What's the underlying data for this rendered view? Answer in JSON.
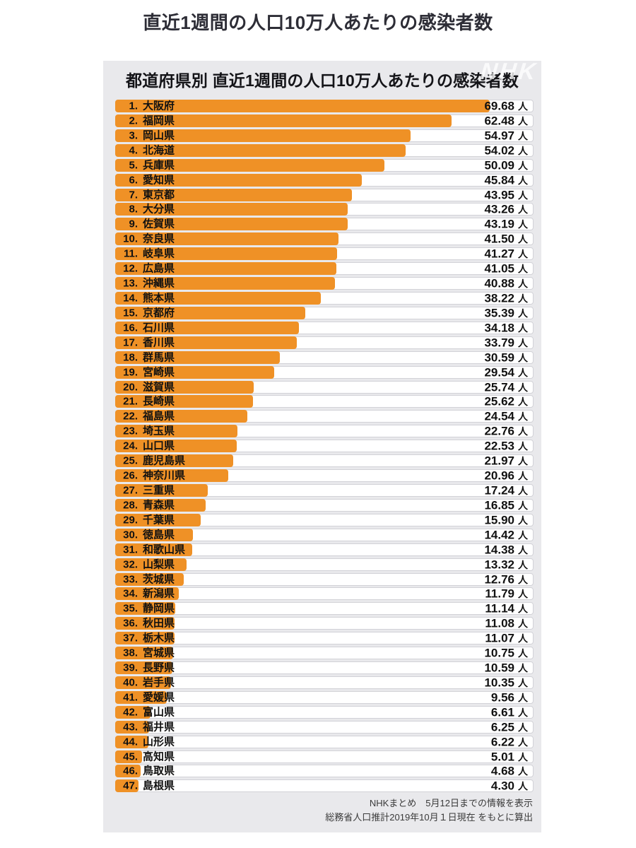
{
  "page_title": "直近1週間の人口10万人あたりの感染者数",
  "watermark": "NHK",
  "card": {
    "header": "都道府県別 直近1週間の人口10万人あたりの感染者数"
  },
  "footer": {
    "line1": "NHKまとめ　5月12日までの情報を表示",
    "line2": "総務省人口推計2019年10月１日現在 をもとに算出"
  },
  "colors": {
    "bar_orange": "#ef9126",
    "card_bg": "#e9e9ec",
    "row_bg": "#ffffff",
    "row_border": "#d2d2d7",
    "title_text": "#2d2d36"
  },
  "chart_data": {
    "type": "bar",
    "orientation": "horizontal",
    "title": "都道府県別 直近1週間の人口10万人あたりの感染者数",
    "subtitle": "直近1週間の人口10万人あたりの感染者数",
    "unit": "人",
    "value_decimals": 2,
    "axis_max": 77.5,
    "legend": "none",
    "grid": false,
    "categories": [
      "大阪府",
      "福岡県",
      "岡山県",
      "北海道",
      "兵庫県",
      "愛知県",
      "東京都",
      "大分県",
      "佐賀県",
      "奈良県",
      "岐阜県",
      "広島県",
      "沖縄県",
      "熊本県",
      "京都府",
      "石川県",
      "香川県",
      "群馬県",
      "宮崎県",
      "滋賀県",
      "長崎県",
      "福島県",
      "埼玉県",
      "山口県",
      "鹿児島県",
      "神奈川県",
      "三重県",
      "青森県",
      "千葉県",
      "徳島県",
      "和歌山県",
      "山梨県",
      "茨城県",
      "新潟県",
      "静岡県",
      "秋田県",
      "栃木県",
      "宮城県",
      "長野県",
      "岩手県",
      "愛媛県",
      "富山県",
      "福井県",
      "山形県",
      "高知県",
      "鳥取県",
      "島根県"
    ],
    "values": [
      69.68,
      62.48,
      54.97,
      54.02,
      50.09,
      45.84,
      43.95,
      43.26,
      43.19,
      41.5,
      41.27,
      41.05,
      40.88,
      38.22,
      35.39,
      34.18,
      33.79,
      30.59,
      29.54,
      25.74,
      25.62,
      24.54,
      22.76,
      22.53,
      21.97,
      20.96,
      17.24,
      16.85,
      15.9,
      14.42,
      14.38,
      13.32,
      12.76,
      11.79,
      11.14,
      11.08,
      11.07,
      10.75,
      10.59,
      10.35,
      9.56,
      6.61,
      6.25,
      6.22,
      5.01,
      4.68,
      4.3
    ]
  }
}
